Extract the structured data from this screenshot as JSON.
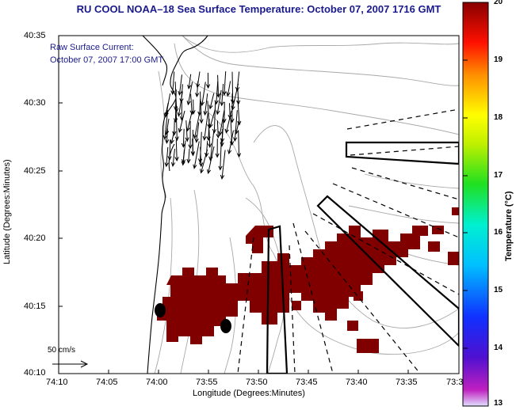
{
  "title": "RU COOL  NOAA–18  Sea Surface Temperature:  October 07, 2007 1716 GMT",
  "current": {
    "label": "Raw Surface Current:",
    "time": "October 07, 2007 17:00 GMT"
  },
  "axes": {
    "xlabel": "Longitude (Degrees:Minutes)",
    "ylabel": "Latitude (Degrees:Minutes)",
    "x_ticks": [
      "74:10",
      "74:05",
      "74:00",
      "73:55",
      "73:50",
      "73:45",
      "73:40",
      "73:35",
      "73:3"
    ],
    "y_ticks": [
      "40:35",
      "40:30",
      "40:25",
      "40:20",
      "40:15",
      "40:10"
    ]
  },
  "scale": {
    "label": "50 cm/s"
  },
  "colorbar": {
    "label": "Temperature (°C)",
    "ticks": [
      "20",
      "19",
      "18",
      "17",
      "16",
      "15",
      "14",
      "13"
    ],
    "min": 13,
    "max": 20,
    "colormap": "jet"
  },
  "colors": {
    "title": "#1a1a8c",
    "sst_fill": "#800000",
    "contour": "#a0a0a0",
    "coast": "#000000"
  },
  "legend_icons": [
    "scale-arrow-icon"
  ]
}
